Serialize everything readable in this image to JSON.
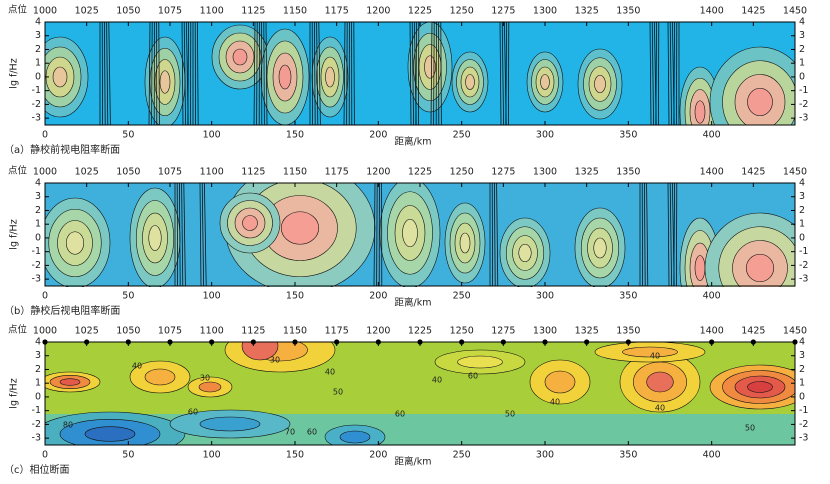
{
  "chart_data": [
    {
      "type": "contour",
      "caption": "（a）静校前视电阻率断面",
      "xlabel": "距离/km",
      "x2label": "点位",
      "ylabel": "lg f/Hz",
      "xlim": [
        0,
        450
      ],
      "xticks": [
        0,
        50,
        100,
        150,
        200,
        250,
        300,
        350,
        400
      ],
      "x2lim": [
        1000,
        1450
      ],
      "x2ticks": [
        1000,
        1025,
        1050,
        1075,
        1100,
        1125,
        1150,
        1175,
        1200,
        1225,
        1250,
        1275,
        1300,
        1325,
        1350,
        1400,
        1425,
        1450
      ],
      "ylim": [
        -3.5,
        4
      ],
      "yticks": [
        -3,
        -2,
        -1,
        0,
        1,
        2,
        3,
        4
      ]
    },
    {
      "type": "contour",
      "caption": "（b）静校后视电阻率断面",
      "xlabel": "距离/km",
      "x2label": "点位",
      "ylabel": "lg f/Hz",
      "xlim": [
        0,
        450
      ],
      "xticks": [
        0,
        50,
        100,
        150,
        200,
        250,
        300,
        350,
        400
      ],
      "x2lim": [
        1000,
        1450
      ],
      "x2ticks": [
        1000,
        1025,
        1050,
        1075,
        1100,
        1125,
        1150,
        1175,
        1200,
        1225,
        1250,
        1275,
        1300,
        1325,
        1350,
        1400,
        1425,
        1450
      ],
      "ylim": [
        -3.5,
        4
      ],
      "yticks": [
        -3,
        -2,
        -1,
        0,
        1,
        2,
        3,
        4
      ]
    },
    {
      "type": "contour",
      "caption": "（c）相位断面",
      "xlabel": "距离/km",
      "x2label": "点位",
      "ylabel": "lg f/Hz",
      "xlim": [
        0,
        450
      ],
      "xticks": [
        0,
        50,
        100,
        150,
        200,
        250,
        300,
        350,
        400
      ],
      "x2lim": [
        1000,
        1450
      ],
      "x2ticks": [
        1000,
        1025,
        1050,
        1075,
        1100,
        1125,
        1150,
        1175,
        1200,
        1225,
        1250,
        1275,
        1300,
        1325,
        1350,
        1400,
        1425,
        1450
      ],
      "ylim": [
        -3.5,
        4
      ],
      "yticks": [
        -3,
        -2,
        -1,
        0,
        1,
        2,
        3,
        4
      ],
      "contour_labels": [
        40,
        30,
        40,
        60,
        50,
        40,
        40,
        50,
        60,
        60,
        70,
        60,
        80,
        40,
        40,
        50,
        30
      ]
    }
  ]
}
